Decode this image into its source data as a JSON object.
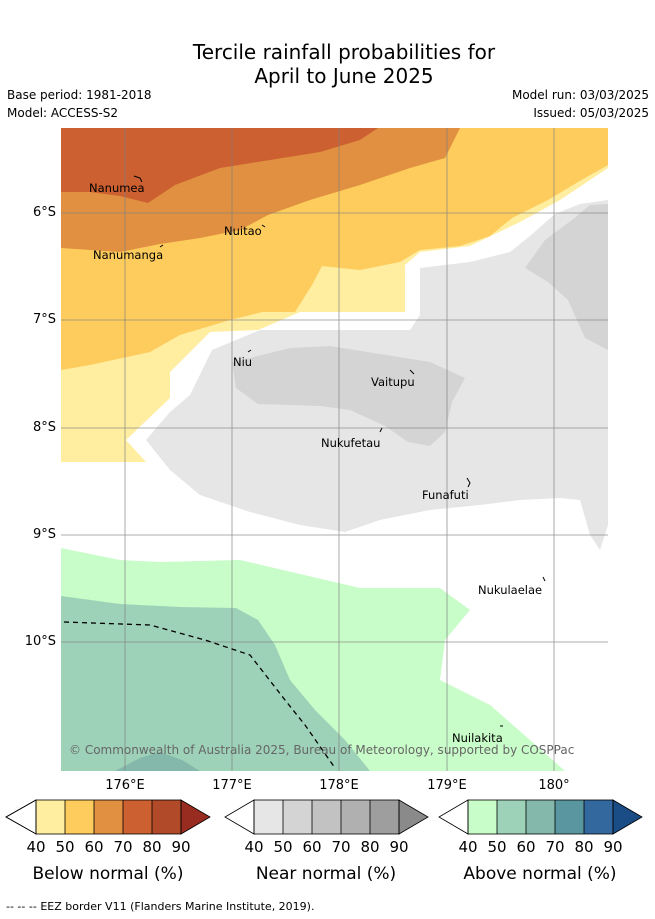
{
  "header": {
    "title_line1": "Tercile rainfall probabilities for",
    "title_line2": "April to June 2025",
    "base_period": "Base period: 1981-2018",
    "model": "Model: ACCESS-S2",
    "model_run": "Model run: 03/03/2025",
    "issued": "Issued: 05/03/2025"
  },
  "map": {
    "lat_labels": [
      "6°S",
      "7°S",
      "8°S",
      "9°S",
      "10°S"
    ],
    "lon_labels": [
      "176°E",
      "177°E",
      "178°E",
      "179°E",
      "180°"
    ],
    "islands": [
      {
        "name": "Nanumea"
      },
      {
        "name": "Nuitao"
      },
      {
        "name": "Nanumanga"
      },
      {
        "name": "Niu"
      },
      {
        "name": "Vaitupu"
      },
      {
        "name": "Nukufetau"
      },
      {
        "name": "Funafuti"
      },
      {
        "name": "Nukulaelae"
      },
      {
        "name": "Nuilakita"
      }
    ],
    "copyright": "© Commonwealth of Australia 2025, Bureau of Meteorology, supported by COSPPac"
  },
  "colorbars": [
    {
      "title": "Below normal (%)",
      "ticks": [
        "40",
        "50",
        "60",
        "70",
        "80",
        "90"
      ],
      "colors": [
        "#ffffff",
        "#ffeda0",
        "#fecc5c",
        "#e09040",
        "#cc6030",
        "#b04a28",
        "#992c20"
      ]
    },
    {
      "title": "Near normal (%)",
      "ticks": [
        "40",
        "50",
        "60",
        "70",
        "80",
        "90"
      ],
      "colors": [
        "#ffffff",
        "#e6e6e6",
        "#d4d4d4",
        "#c2c2c2",
        "#b0b0b0",
        "#9e9e9e",
        "#8a8a8a"
      ]
    },
    {
      "title": "Above normal (%)",
      "ticks": [
        "40",
        "50",
        "60",
        "70",
        "80",
        "90"
      ],
      "colors": [
        "#ffffff",
        "#c8fcc8",
        "#9dd2b8",
        "#84b8aa",
        "#5a96a0",
        "#33689e",
        "#1a4c86"
      ]
    }
  ],
  "footer": {
    "legend_symbol": "-- -- --",
    "legend_text": "EEZ border V11 (Flanders Marine Institute, 2019)."
  }
}
